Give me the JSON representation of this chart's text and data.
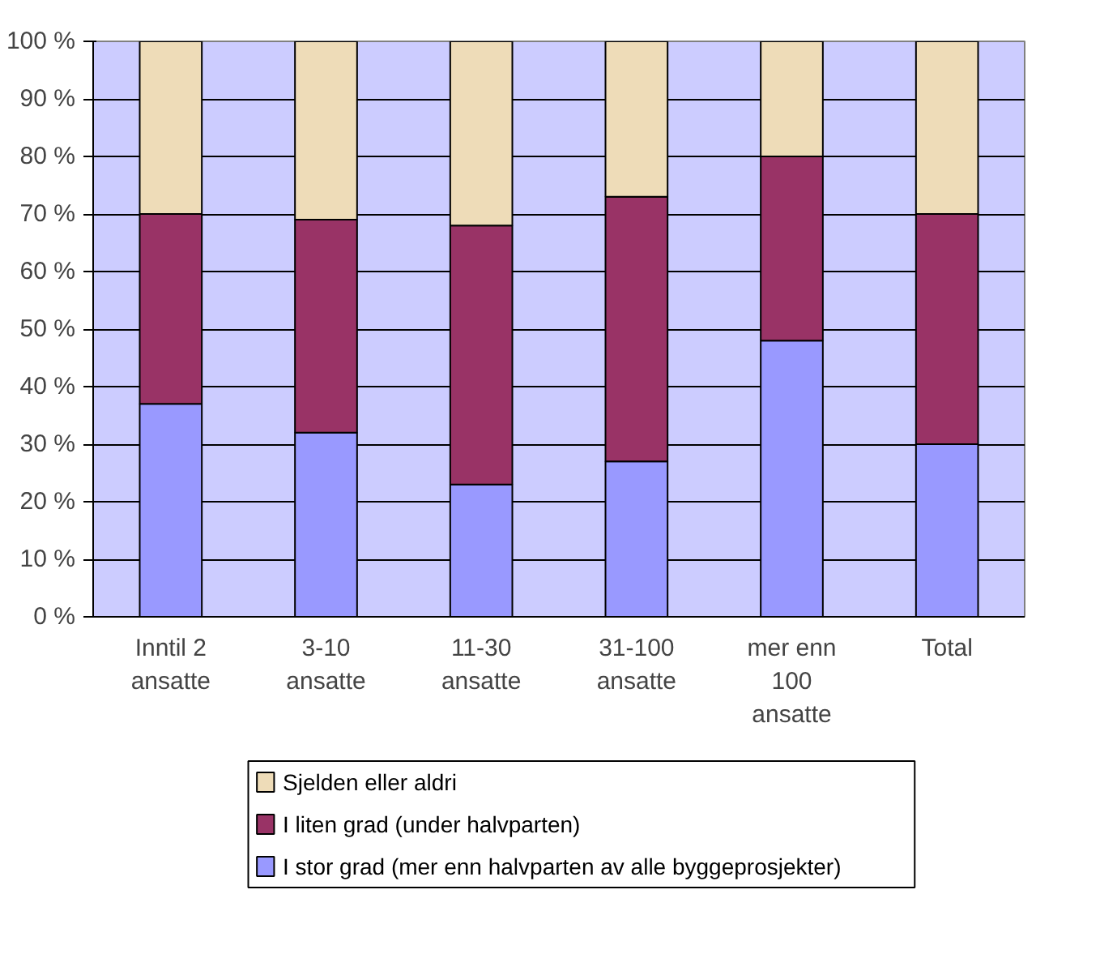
{
  "chart_data": {
    "type": "bar",
    "stacked": true,
    "categories": [
      "Inntil 2\nansatte",
      "3-10\nansatte",
      "11-30\nansatte",
      "31-100\nansatte",
      "mer enn\n100\nansatte",
      "Total"
    ],
    "series": [
      {
        "name": "I stor grad (mer enn halvparten av alle byggeprosjekter)",
        "color": "#9999ff",
        "values": [
          37,
          32,
          23,
          27,
          48,
          30
        ]
      },
      {
        "name": "I liten grad (under halvparten)",
        "color": "#993366",
        "values": [
          33,
          37,
          45,
          46,
          32,
          40
        ]
      },
      {
        "name": "Sjelden eller aldri",
        "color": "#eedcb8",
        "values": [
          30,
          31,
          32,
          27,
          20,
          30
        ]
      }
    ],
    "ylim": [
      0,
      100
    ],
    "yticks": [
      {
        "value": 0,
        "label": "0 %"
      },
      {
        "value": 10,
        "label": "10 %"
      },
      {
        "value": 20,
        "label": "20 %"
      },
      {
        "value": 30,
        "label": "30 %"
      },
      {
        "value": 40,
        "label": "40 %"
      },
      {
        "value": 50,
        "label": "50 %"
      },
      {
        "value": 60,
        "label": "60 %"
      },
      {
        "value": 70,
        "label": "70 %"
      },
      {
        "value": 80,
        "label": "80 %"
      },
      {
        "value": 90,
        "label": "90 %"
      },
      {
        "value": 100,
        "label": "100 %"
      }
    ],
    "grid": "y",
    "legend": "bottom"
  }
}
